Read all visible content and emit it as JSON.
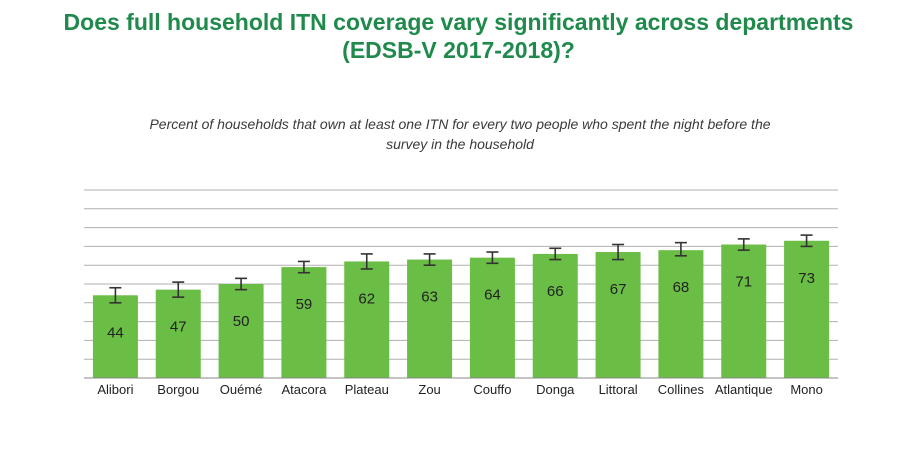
{
  "title_line1": "Does full household ITN coverage vary significantly across departments",
  "title_line2": "(EDSB-V 2017-2018)?",
  "subtitle_line1": "Percent of households that own at least one ITN for every two people who spent the night before the",
  "subtitle_line2": "survey in the household",
  "colors": {
    "bar": "#6abd45",
    "title": "#1f8a4c",
    "grid": "#b0b0b0",
    "error": "#333333"
  },
  "chart_data": {
    "type": "bar",
    "title": "Does full household ITN coverage vary significantly across departments (EDSB-V 2017-2018)?",
    "subtitle": "Percent of households that own at least one ITN for every two people who spent the night before the survey in the household",
    "xlabel": "",
    "ylabel": "",
    "categories": [
      "Alibori",
      "Borgou",
      "Ouémé",
      "Atacora",
      "Plateau",
      "Zou",
      "Couffo",
      "Donga",
      "Littoral",
      "Collines",
      "Atlantique",
      "Mono"
    ],
    "values": [
      44,
      47,
      50,
      59,
      62,
      63,
      64,
      66,
      67,
      68,
      71,
      73
    ],
    "error_low": [
      40,
      43,
      47,
      56,
      58,
      60,
      61,
      63,
      63,
      65,
      68,
      70
    ],
    "error_high": [
      48,
      51,
      53,
      62,
      66,
      66,
      67,
      69,
      71,
      72,
      74,
      76
    ],
    "ylim": [
      0,
      100
    ],
    "grid": true
  }
}
